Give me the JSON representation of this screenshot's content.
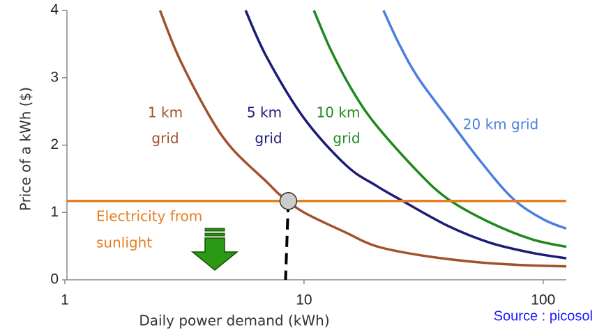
{
  "chart_data": {
    "type": "line",
    "x_label": "Daily power demand (kWh)",
    "y_label": "Price of a  kWh ($)",
    "source": "Source : picosol",
    "x_log": true,
    "xlim": [
      1,
      125
    ],
    "ylim": [
      0,
      4
    ],
    "xticks": [
      1,
      10,
      100
    ],
    "yticks": [
      0,
      1,
      2,
      3,
      4
    ],
    "series": [
      {
        "label_lines": [
          "1 km",
          "grid"
        ],
        "color": "#a0522d",
        "x": [
          2.5,
          3,
          4,
          5,
          7,
          8,
          10,
          15,
          20,
          30,
          50,
          80,
          125
        ],
        "values": [
          4,
          3.3,
          2.45,
          1.95,
          1.45,
          1.25,
          1.0,
          0.7,
          0.5,
          0.37,
          0.27,
          0.22,
          0.2
        ]
      },
      {
        "label_lines": [
          "5 km",
          "grid"
        ],
        "color": "#1c1c78",
        "x": [
          5.7,
          7,
          10,
          15,
          20,
          25,
          40,
          60,
          90,
          125
        ],
        "values": [
          4,
          3.3,
          2.4,
          1.7,
          1.4,
          1.2,
          0.8,
          0.55,
          0.4,
          0.32
        ]
      },
      {
        "label_lines": [
          "10 km",
          "grid"
        ],
        "color": "#1e8a1e",
        "x": [
          11,
          13,
          16,
          20,
          30,
          40,
          60,
          90,
          125
        ],
        "values": [
          4,
          3.4,
          2.8,
          2.3,
          1.6,
          1.2,
          0.85,
          0.6,
          0.49
        ]
      },
      {
        "label_lines": [
          "20 km grid"
        ],
        "color": "#4a7fe0",
        "x": [
          21.5,
          25,
          30,
          40,
          55,
          75,
          100,
          125
        ],
        "values": [
          4,
          3.5,
          3.0,
          2.4,
          1.75,
          1.2,
          0.9,
          0.76
        ]
      },
      {
        "label_lines": [
          "Electricity from",
          "sunlight"
        ],
        "color": "#e67e22",
        "x": [
          1,
          125
        ],
        "values": [
          1.17,
          1.17
        ]
      }
    ],
    "crossing": {
      "x": 8.6,
      "y": 1.17
    }
  }
}
